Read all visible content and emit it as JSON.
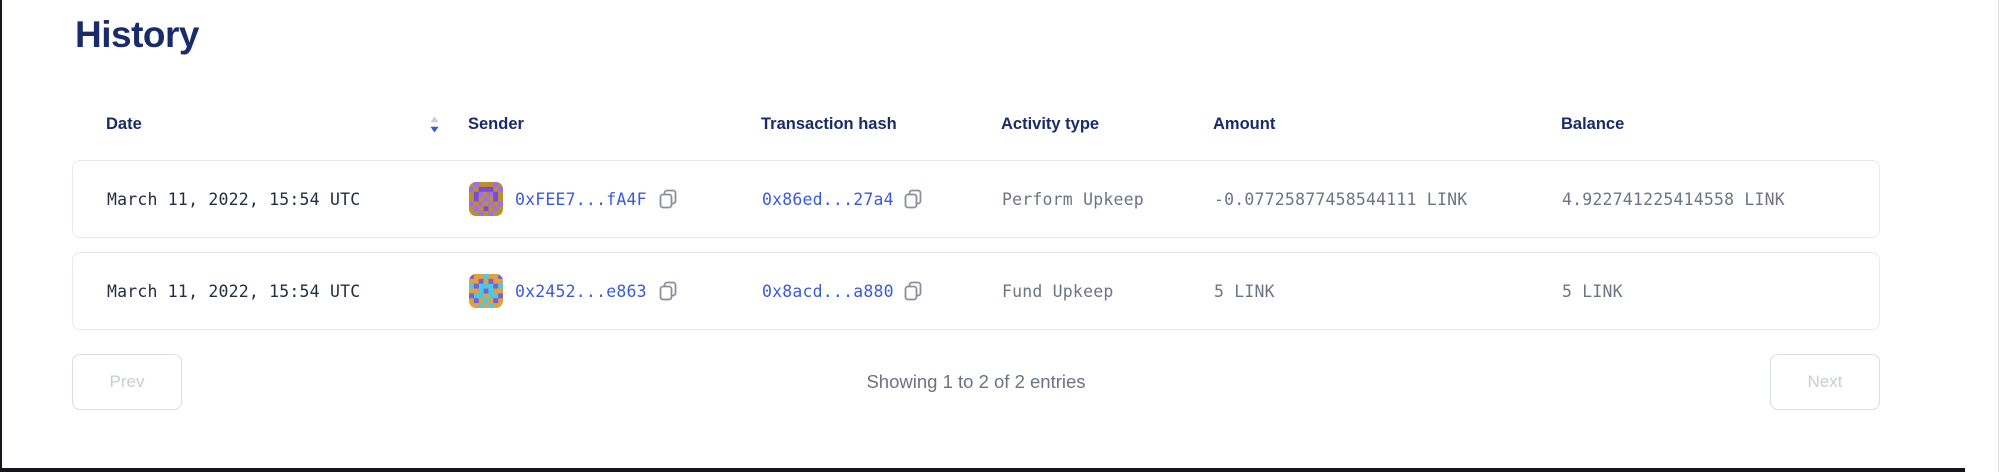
{
  "page": {
    "title": "History"
  },
  "colors": {
    "title_navy": "#1a2b6b",
    "link_blue": "#3a5bd9",
    "muted_gray": "#6d7484",
    "date_dark": "#242e40",
    "sort_active_blue": "#2a5ada",
    "sort_inactive_gray": "#c8cdd9"
  },
  "table": {
    "columns": [
      {
        "label": "Date",
        "sorted": "desc"
      },
      {
        "label": "Sender"
      },
      {
        "label": "Transaction hash"
      },
      {
        "label": "Activity type"
      },
      {
        "label": "Amount"
      },
      {
        "label": "Balance"
      }
    ],
    "rows": [
      {
        "date": "March 11, 2022, 15:54 UTC",
        "sender": "0xFEE7...fA4F",
        "tx_hash": "0x86ed...27a4",
        "activity_type": "Perform Upkeep",
        "amount": "-0.07725877458544111 LINK",
        "balance": "4.922741225414558 LINK",
        "avatar": {
          "palette": [
            "#9b6df1",
            "#bb8f2e",
            "#7a49d6"
          ],
          "pixels": [
            "1011101",
            "0122210",
            "1201021",
            "1210121",
            "0101010",
            "1012101",
            "1101011"
          ]
        }
      },
      {
        "date": "March 11, 2022, 15:54 UTC",
        "sender": "0x2452...e863",
        "tx_hash": "0x8acd...a880",
        "activity_type": "Fund Upkeep",
        "amount": "5 LINK",
        "balance": "5 LINK",
        "avatar": {
          "palette": [
            "#dfa23d",
            "#49c9e6",
            "#7b5bd6"
          ],
          "pixels": [
            "2001002",
            "0020200",
            "1211121",
            "0012100",
            "2110112",
            "0201020",
            "0010100"
          ]
        }
      }
    ]
  },
  "pagination": {
    "prev_label": "Prev",
    "summary": "Showing 1 to 2 of 2 entries",
    "next_label": "Next"
  }
}
